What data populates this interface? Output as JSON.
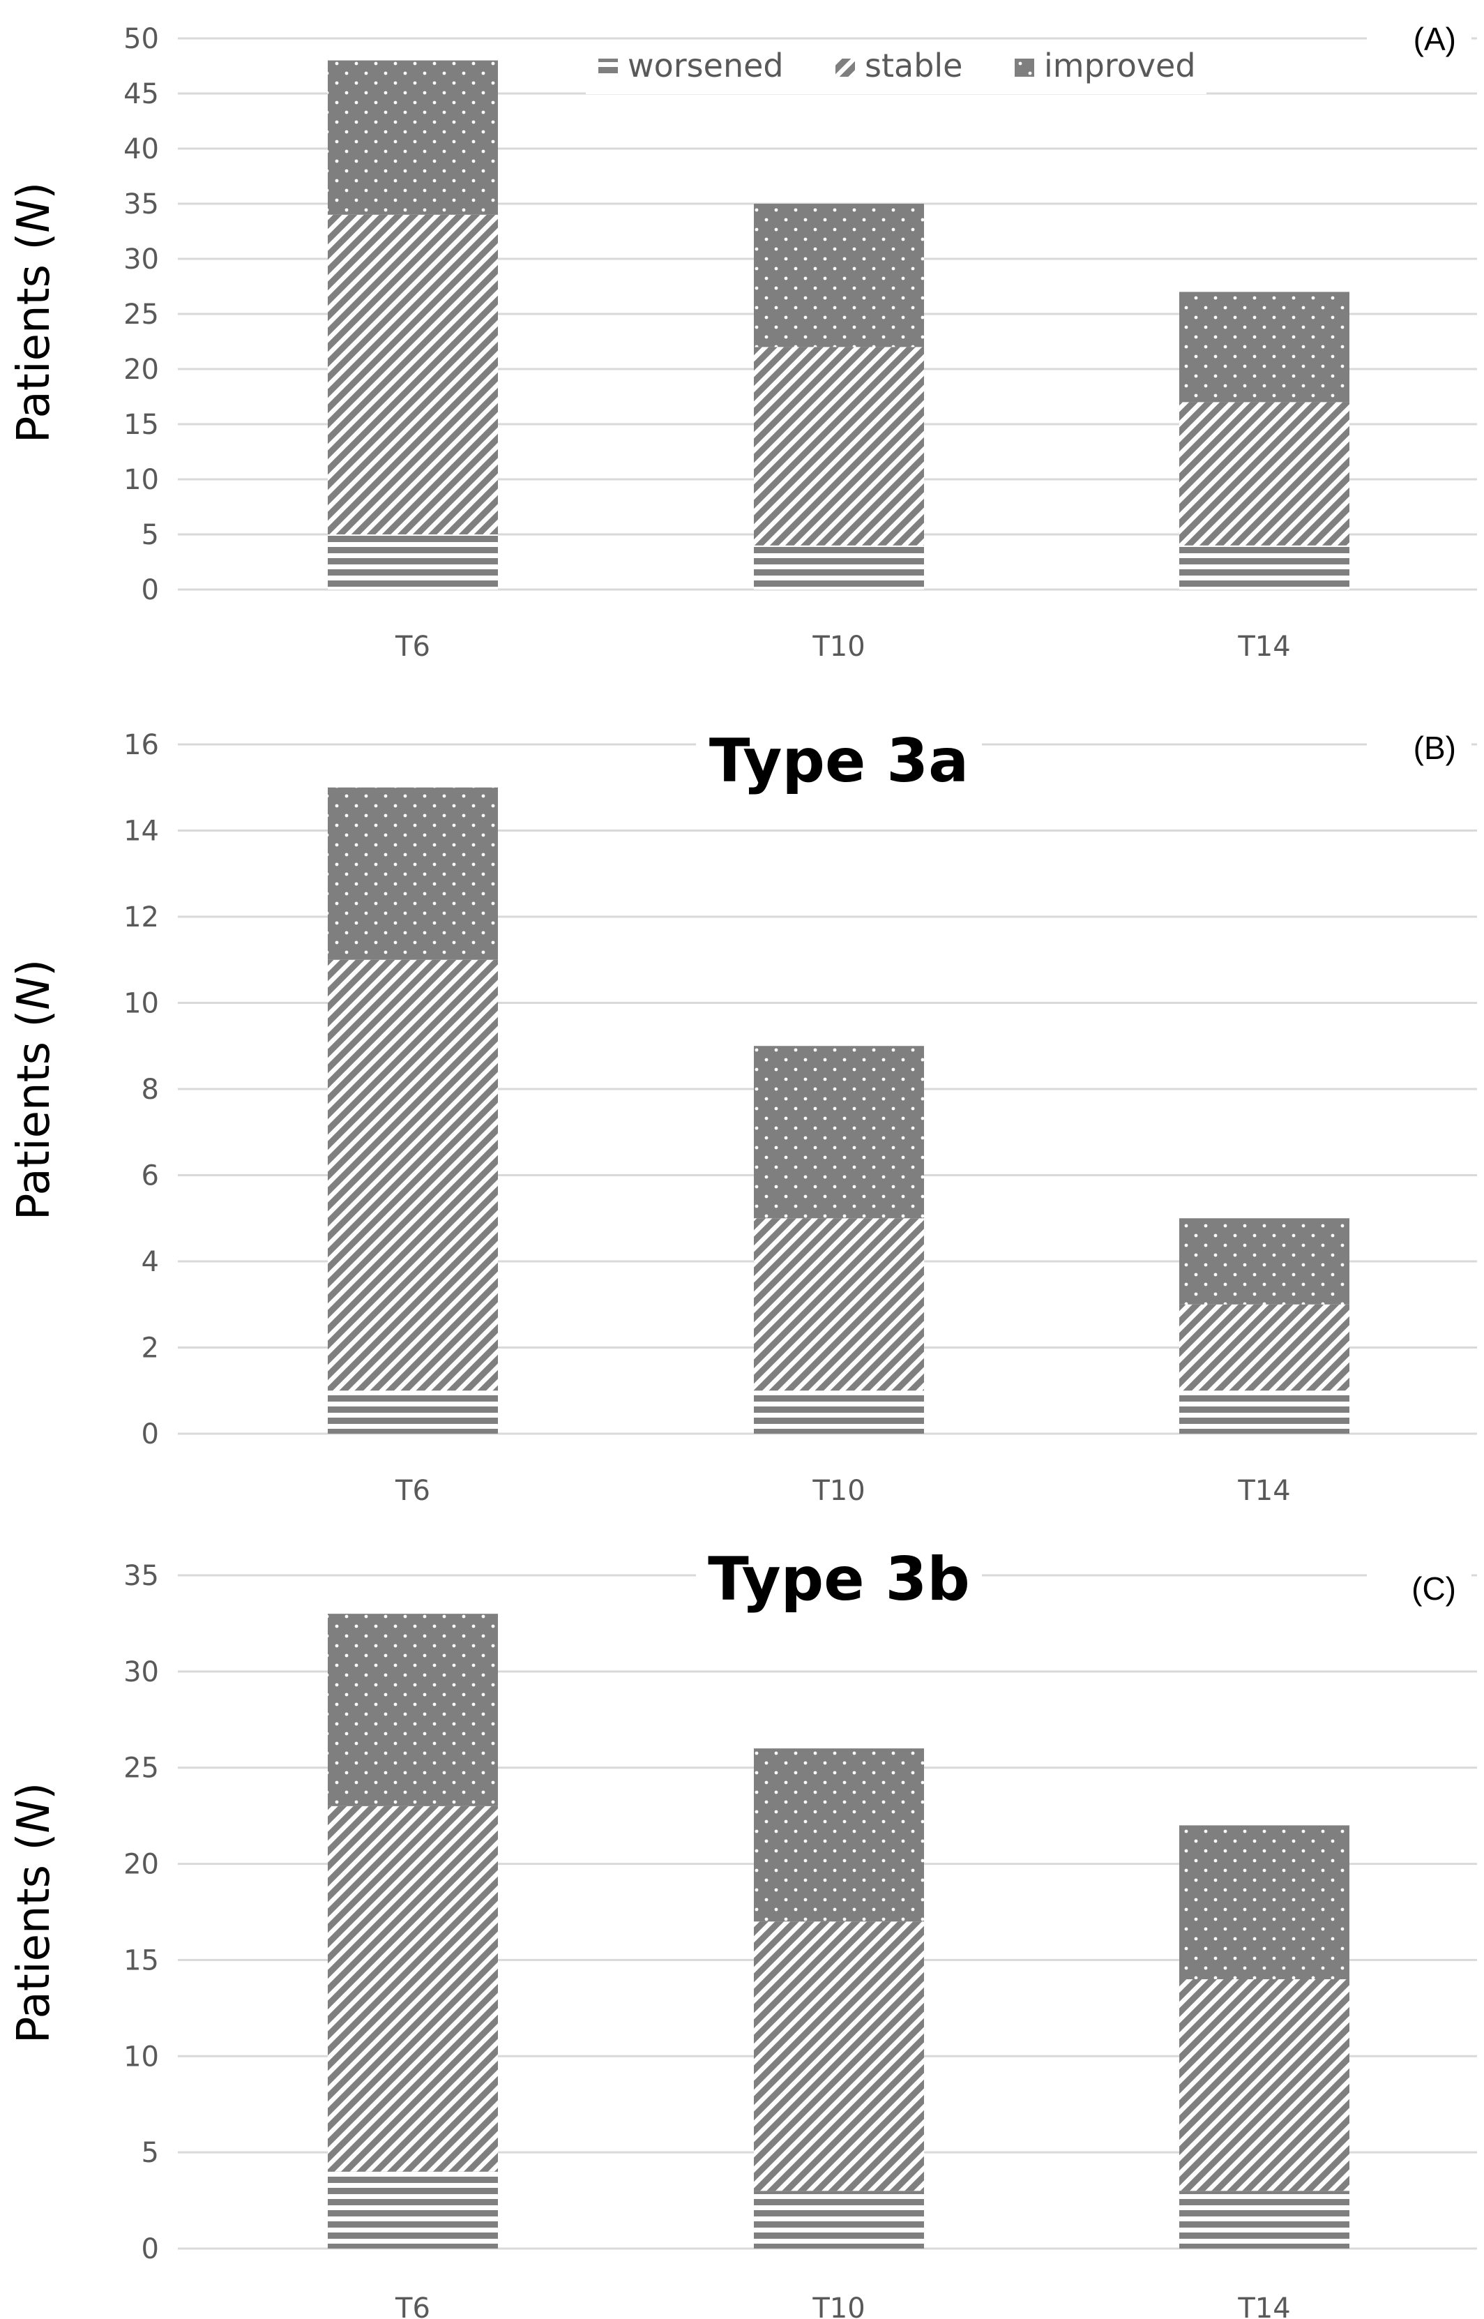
{
  "colors": {
    "bar": "#7f7f7f",
    "grid": "#d9d9d9",
    "tick": "#595959",
    "background": "#ffffff"
  },
  "legend": [
    {
      "name": "worsened",
      "pattern": "horizontal-lines"
    },
    {
      "name": "stable",
      "pattern": "diagonal-stripes"
    },
    {
      "name": "improved",
      "pattern": "dots"
    }
  ],
  "chart_data": [
    {
      "type": "bar",
      "stacked": true,
      "panel_label": "(A)",
      "title": "",
      "ylabel_main": "Patients (",
      "ylabel_var": "N",
      "ylabel_end": ")",
      "ylim": [
        0,
        50
      ],
      "yticks": [
        "0",
        "5",
        "10",
        "15",
        "20",
        "25",
        "30",
        "35",
        "40",
        "45",
        "50"
      ],
      "categories": [
        "T6",
        "T10",
        "T14"
      ],
      "series": [
        {
          "name": "worsened",
          "values": [
            5,
            4,
            4
          ]
        },
        {
          "name": "stable",
          "values": [
            29,
            18,
            13
          ]
        },
        {
          "name": "improved",
          "values": [
            14,
            13,
            10
          ]
        }
      ],
      "legend_position": "top",
      "grid": true
    },
    {
      "type": "bar",
      "stacked": true,
      "panel_label": "(B)",
      "title": "Type 3a",
      "ylabel_main": "Patients (",
      "ylabel_var": "N",
      "ylabel_end": ")",
      "ylim": [
        0,
        16
      ],
      "yticks": [
        "0",
        "2",
        "4",
        "6",
        "8",
        "10",
        "12",
        "14",
        "16"
      ],
      "categories": [
        "T6",
        "T10",
        "T14"
      ],
      "series": [
        {
          "name": "worsened",
          "values": [
            1,
            1,
            1
          ]
        },
        {
          "name": "stable",
          "values": [
            10,
            4,
            2
          ]
        },
        {
          "name": "improved",
          "values": [
            4,
            4,
            2
          ]
        }
      ],
      "grid": true
    },
    {
      "type": "bar",
      "stacked": true,
      "panel_label": "(C)",
      "title": "Type 3b",
      "ylabel_main": "Patients (",
      "ylabel_var": "N",
      "ylabel_end": ")",
      "ylim": [
        0,
        35
      ],
      "yticks": [
        "0",
        "5",
        "10",
        "15",
        "20",
        "25",
        "30",
        "35"
      ],
      "categories": [
        "T6",
        "T10",
        "T14"
      ],
      "series": [
        {
          "name": "worsened",
          "values": [
            4,
            3,
            3
          ]
        },
        {
          "name": "stable",
          "values": [
            19,
            14,
            11
          ]
        },
        {
          "name": "improved",
          "values": [
            10,
            9,
            8
          ]
        }
      ],
      "grid": true
    }
  ]
}
